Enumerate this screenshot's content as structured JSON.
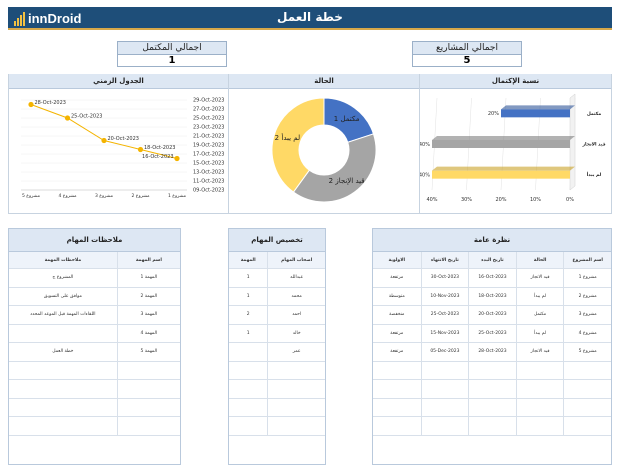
{
  "header": {
    "logo_text": "innDroid",
    "title": "خطة العمل"
  },
  "kpis": {
    "completed": {
      "label": "اجمالي المكتمل",
      "value": "1"
    },
    "projects": {
      "label": "اجمالي المشاريع",
      "value": "5"
    }
  },
  "panels": {
    "timeline": "الجدول الزمني",
    "status": "الحالة",
    "completion": "نسبة الإكتمال"
  },
  "colors": {
    "blue": "#4472c4",
    "gray": "#a5a5a5",
    "yellow": "#ffd966",
    "orange": "#f4b400"
  },
  "timeline_chart": {
    "type": "line",
    "y_ticks": [
      "29-Oct-2023",
      "27-Oct-2023",
      "25-Oct-2023",
      "23-Oct-2023",
      "21-Oct-2023",
      "19-Oct-2023",
      "17-Oct-2023",
      "15-Oct-2023",
      "13-Oct-2023",
      "11-Oct-2023",
      "09-Oct-2023"
    ],
    "ylim": [
      "09-Oct-2023",
      "29-Oct-2023"
    ],
    "categories": [
      "مشروع 1",
      "مشروع 2",
      "مشروع 3",
      "مشروع 4",
      "مشروع 5"
    ],
    "values": [
      "16-Oct-2023",
      "18-Oct-2023",
      "20-Oct-2023",
      "25-Oct-2023",
      "28-Oct-2023"
    ]
  },
  "status_chart": {
    "type": "pie",
    "slices": [
      {
        "label": "مكتمل",
        "value": 1,
        "color": "#4472c4"
      },
      {
        "label": "قيد الإنجاز",
        "value": 2,
        "color": "#a5a5a5"
      },
      {
        "label": "لم يبدأ",
        "value": 2,
        "color": "#ffd966"
      }
    ]
  },
  "completion_chart": {
    "type": "bar",
    "categories": [
      "مكتمل",
      "قيد الانجاز",
      "لم يبدأ"
    ],
    "values": [
      20,
      40,
      40
    ],
    "value_labels": [
      "20%",
      "40%",
      "40%"
    ],
    "x_ticks": [
      "40%",
      "30%",
      "20%",
      "10%",
      "0%"
    ],
    "xlim": [
      0,
      40
    ]
  },
  "notes_table": {
    "title": "ملاحظات المهام",
    "headers": [
      "ملاحظات المهمة",
      "اسم المهمة"
    ],
    "rows": [
      [
        "المشروع ج",
        "المهمة 1"
      ],
      [
        "موافق على التسويق",
        "المهمة 2"
      ],
      [
        "اللقاءات المهمة قبل الموعد المحدد",
        "المهمة 3"
      ],
      [
        "",
        "المهمة 4"
      ],
      [
        "خطة العمل",
        "المهمة 5"
      ],
      [
        "",
        ""
      ],
      [
        "",
        ""
      ],
      [
        "",
        ""
      ],
      [
        "",
        ""
      ]
    ]
  },
  "assign_table": {
    "title": "تخصيص المهام",
    "headers": [
      "المهمة",
      "اصحاب المهام"
    ],
    "rows": [
      [
        "1",
        "عبدالله"
      ],
      [
        "1",
        "محمد"
      ],
      [
        "2",
        "احمد"
      ],
      [
        "1",
        "خالد"
      ],
      [
        "",
        "عمر"
      ],
      [
        "",
        ""
      ],
      [
        "",
        ""
      ],
      [
        "",
        ""
      ],
      [
        "",
        ""
      ]
    ]
  },
  "overview_table": {
    "title": "نظرة عامة",
    "headers": [
      "الاولوية",
      "تاريخ الانتهاء",
      "تاريخ البدء",
      "الحالة",
      "اسم المشروع"
    ],
    "rows": [
      [
        "مرتفعة",
        "30-Oct-2023",
        "16-Oct-2023",
        "قيد الانجاز",
        "مشروع 1"
      ],
      [
        "متوسطة",
        "10-Nov-2023",
        "18-Oct-2023",
        "لم يبدأ",
        "مشروع 2"
      ],
      [
        "منخفضة",
        "25-Oct-2023",
        "20-Oct-2023",
        "مكتمل",
        "مشروع 3"
      ],
      [
        "مرتفعة",
        "15-Nov-2023",
        "25-Oct-2023",
        "لم يبدأ",
        "مشروع 4"
      ],
      [
        "مرتفعة",
        "05-Dec-2023",
        "28-Oct-2023",
        "قيد الانجاز",
        "مشروع 5"
      ],
      [
        "",
        "",
        "",
        "",
        ""
      ],
      [
        "",
        "",
        "",
        "",
        ""
      ],
      [
        "",
        "",
        "",
        "",
        ""
      ],
      [
        "",
        "",
        "",
        "",
        ""
      ]
    ]
  }
}
